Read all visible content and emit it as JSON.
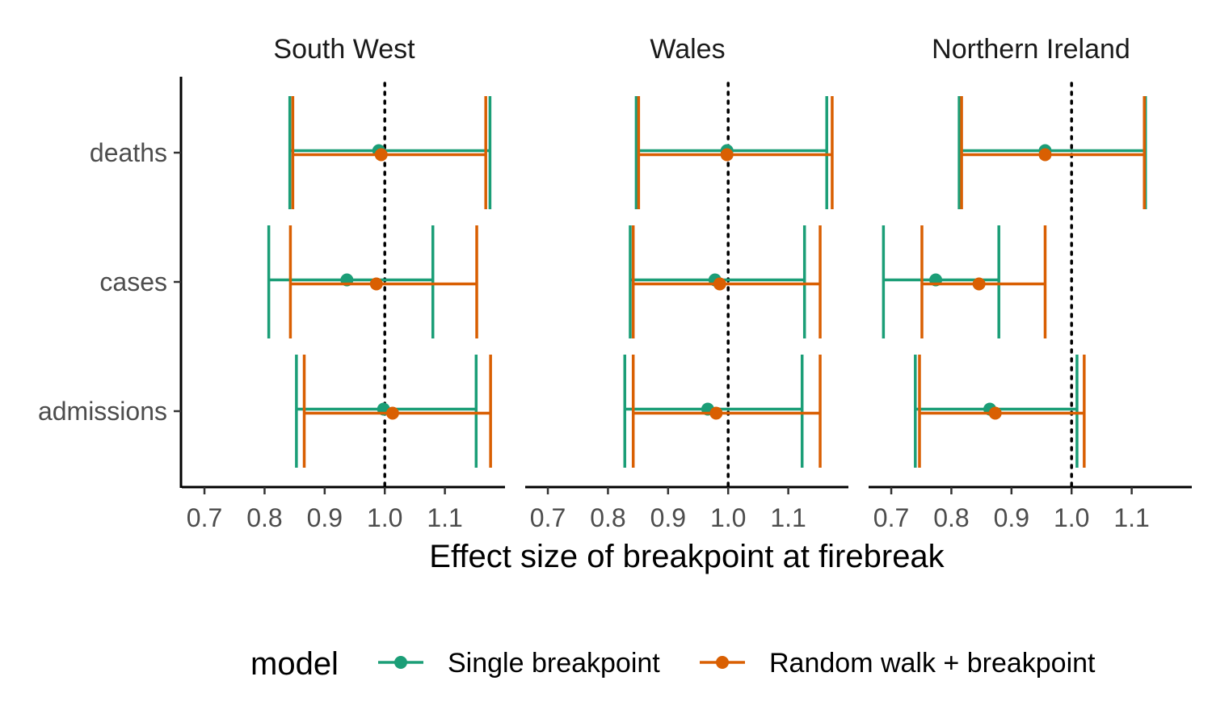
{
  "chart_data": {
    "type": "errorbar",
    "xlabel": "Effect size of breakpoint at firebreak",
    "ylabel": "",
    "xlim": [
      0.665,
      1.2
    ],
    "x_ticks": [
      0.7,
      0.8,
      0.9,
      1.0,
      1.1
    ],
    "x_tick_labels": [
      "0.7",
      "0.8",
      "0.9",
      "1.0",
      "1.1"
    ],
    "reference_line": 1.0,
    "categories": [
      "deaths",
      "cases",
      "admissions"
    ],
    "panels": [
      "South West",
      "Wales",
      "Northern Ireland"
    ],
    "legend": {
      "title": "model",
      "position": "bottom"
    },
    "series": [
      {
        "name": "Single breakpoint",
        "color": "#1b9e77",
        "data": {
          "South West": {
            "deaths": {
              "estimate": 0.99,
              "lower": 0.842,
              "upper": 1.175
            },
            "cases": {
              "estimate": 0.937,
              "lower": 0.807,
              "upper": 1.08
            },
            "admissions": {
              "estimate": 0.998,
              "lower": 0.853,
              "upper": 1.152
            }
          },
          "Wales": {
            "deaths": {
              "estimate": 0.998,
              "lower": 0.847,
              "upper": 1.164
            },
            "cases": {
              "estimate": 0.978,
              "lower": 0.837,
              "upper": 1.127
            },
            "admissions": {
              "estimate": 0.966,
              "lower": 0.828,
              "upper": 1.123
            }
          },
          "Northern Ireland": {
            "deaths": {
              "estimate": 0.956,
              "lower": 0.813,
              "upper": 1.123
            },
            "cases": {
              "estimate": 0.774,
              "lower": 0.687,
              "upper": 0.879
            },
            "admissions": {
              "estimate": 0.864,
              "lower": 0.74,
              "upper": 1.009
            }
          }
        }
      },
      {
        "name": "Random walk + breakpoint",
        "color": "#d95f02",
        "data": {
          "South West": {
            "deaths": {
              "estimate": 0.994,
              "lower": 0.847,
              "upper": 1.168
            },
            "cases": {
              "estimate": 0.986,
              "lower": 0.843,
              "upper": 1.153
            },
            "admissions": {
              "estimate": 1.013,
              "lower": 0.866,
              "upper": 1.176
            }
          },
          "Wales": {
            "deaths": {
              "estimate": 0.998,
              "lower": 0.851,
              "upper": 1.173
            },
            "cases": {
              "estimate": 0.986,
              "lower": 0.842,
              "upper": 1.153
            },
            "admissions": {
              "estimate": 0.98,
              "lower": 0.842,
              "upper": 1.153
            }
          },
          "Northern Ireland": {
            "deaths": {
              "estimate": 0.956,
              "lower": 0.817,
              "upper": 1.121
            },
            "cases": {
              "estimate": 0.846,
              "lower": 0.751,
              "upper": 0.956
            },
            "admissions": {
              "estimate": 0.873,
              "lower": 0.747,
              "upper": 1.021
            }
          }
        }
      }
    ]
  }
}
